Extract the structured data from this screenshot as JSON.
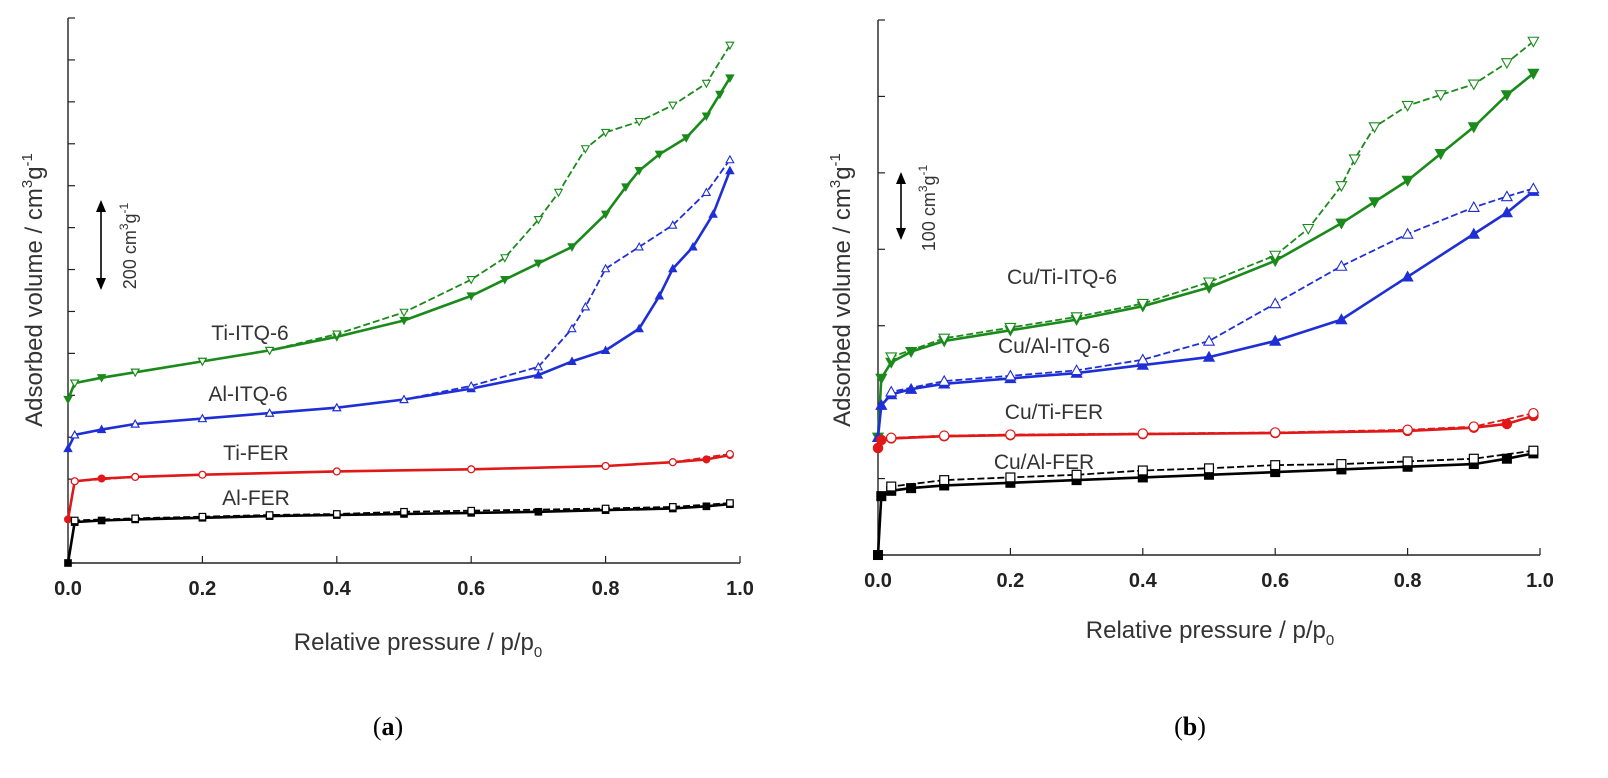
{
  "chart_data": [
    {
      "type": "line",
      "panel_label": "(a)",
      "panel_letter": "a",
      "xlabel": "Relative pressure / p/p",
      "xlabel_sub": "0",
      "ylabel": "Adsorbed volume / cm",
      "ylabel_sup1": "3",
      "ylabel_mid": "g",
      "ylabel_sup2": "-1",
      "xlim": [
        0,
        1
      ],
      "xticks": [
        "0.0",
        "0.2",
        "0.4",
        "0.6",
        "0.8",
        "1.0"
      ],
      "y_tick_labels_shown": false,
      "scale_bar": {
        "text": "200 cm",
        "sup1": "3",
        "mid": "g",
        "sup2": "-1",
        "value": 200
      },
      "series": [
        {
          "name": "Ti-ITQ-6",
          "color": "#1a8a1a",
          "marker": "triangle-down",
          "adsorption": [
            [
              0.0,
              0.3
            ],
            [
              0.01,
              0.33
            ],
            [
              0.05,
              0.34
            ],
            [
              0.1,
              0.35
            ],
            [
              0.2,
              0.37
            ],
            [
              0.3,
              0.39
            ],
            [
              0.4,
              0.415
            ],
            [
              0.5,
              0.445
            ],
            [
              0.6,
              0.49
            ],
            [
              0.65,
              0.52
            ],
            [
              0.7,
              0.55
            ],
            [
              0.75,
              0.58
            ],
            [
              0.8,
              0.64
            ],
            [
              0.83,
              0.69
            ],
            [
              0.85,
              0.72
            ],
            [
              0.88,
              0.75
            ],
            [
              0.92,
              0.78
            ],
            [
              0.95,
              0.82
            ],
            [
              0.97,
              0.86
            ],
            [
              0.985,
              0.89
            ]
          ],
          "desorption": [
            [
              0.985,
              0.95
            ],
            [
              0.95,
              0.88
            ],
            [
              0.9,
              0.84
            ],
            [
              0.85,
              0.81
            ],
            [
              0.8,
              0.79
            ],
            [
              0.77,
              0.76
            ],
            [
              0.73,
              0.68
            ],
            [
              0.7,
              0.63
            ],
            [
              0.65,
              0.56
            ],
            [
              0.6,
              0.52
            ],
            [
              0.5,
              0.46
            ],
            [
              0.4,
              0.42
            ],
            [
              0.3,
              0.39
            ],
            [
              0.2,
              0.37
            ],
            [
              0.1,
              0.35
            ],
            [
              0.01,
              0.33
            ]
          ]
        },
        {
          "name": "Al-ITQ-6",
          "color": "#1f2fd6",
          "marker": "triangle-up",
          "adsorption": [
            [
              0.0,
              0.21
            ],
            [
              0.01,
              0.235
            ],
            [
              0.05,
              0.245
            ],
            [
              0.1,
              0.255
            ],
            [
              0.2,
              0.265
            ],
            [
              0.3,
              0.275
            ],
            [
              0.4,
              0.285
            ],
            [
              0.5,
              0.3
            ],
            [
              0.6,
              0.32
            ],
            [
              0.7,
              0.345
            ],
            [
              0.75,
              0.37
            ],
            [
              0.8,
              0.39
            ],
            [
              0.85,
              0.43
            ],
            [
              0.88,
              0.49
            ],
            [
              0.9,
              0.54
            ],
            [
              0.93,
              0.58
            ],
            [
              0.96,
              0.64
            ],
            [
              0.985,
              0.72
            ]
          ],
          "desorption": [
            [
              0.985,
              0.74
            ],
            [
              0.95,
              0.68
            ],
            [
              0.9,
              0.62
            ],
            [
              0.85,
              0.58
            ],
            [
              0.8,
              0.54
            ],
            [
              0.77,
              0.47
            ],
            [
              0.75,
              0.43
            ],
            [
              0.7,
              0.36
            ],
            [
              0.6,
              0.325
            ],
            [
              0.5,
              0.3
            ],
            [
              0.4,
              0.285
            ],
            [
              0.3,
              0.275
            ],
            [
              0.2,
              0.265
            ],
            [
              0.1,
              0.255
            ],
            [
              0.01,
              0.235
            ]
          ]
        },
        {
          "name": "Ti-FER",
          "color": "#e01818",
          "marker": "circle",
          "adsorption": [
            [
              0.0,
              0.08
            ],
            [
              0.01,
              0.15
            ],
            [
              0.05,
              0.155
            ],
            [
              0.1,
              0.158
            ],
            [
              0.2,
              0.162
            ],
            [
              0.4,
              0.168
            ],
            [
              0.6,
              0.172
            ],
            [
              0.8,
              0.178
            ],
            [
              0.9,
              0.185
            ],
            [
              0.95,
              0.19
            ],
            [
              0.985,
              0.198
            ]
          ],
          "desorption": [
            [
              0.985,
              0.2
            ],
            [
              0.9,
              0.185
            ],
            [
              0.8,
              0.178
            ],
            [
              0.6,
              0.172
            ],
            [
              0.4,
              0.168
            ],
            [
              0.2,
              0.162
            ],
            [
              0.1,
              0.158
            ],
            [
              0.01,
              0.15
            ]
          ]
        },
        {
          "name": "Al-FER",
          "color": "#000000",
          "marker": "square",
          "adsorption": [
            [
              0.0,
              0.0
            ],
            [
              0.01,
              0.075
            ],
            [
              0.05,
              0.078
            ],
            [
              0.1,
              0.08
            ],
            [
              0.2,
              0.083
            ],
            [
              0.3,
              0.086
            ],
            [
              0.4,
              0.088
            ],
            [
              0.5,
              0.09
            ],
            [
              0.6,
              0.092
            ],
            [
              0.7,
              0.094
            ],
            [
              0.8,
              0.097
            ],
            [
              0.9,
              0.1
            ],
            [
              0.95,
              0.104
            ],
            [
              0.985,
              0.108
            ]
          ],
          "desorption": [
            [
              0.985,
              0.11
            ],
            [
              0.9,
              0.103
            ],
            [
              0.8,
              0.1
            ],
            [
              0.6,
              0.096
            ],
            [
              0.5,
              0.094
            ],
            [
              0.4,
              0.09
            ],
            [
              0.3,
              0.088
            ],
            [
              0.2,
              0.085
            ],
            [
              0.1,
              0.082
            ],
            [
              0.01,
              0.078
            ]
          ]
        }
      ]
    },
    {
      "type": "line",
      "panel_label": "(b)",
      "panel_letter": "b",
      "xlabel": "Relative pressure / p/p",
      "xlabel_sub": "0",
      "ylabel": "Adsorbed volume / cm",
      "ylabel_sup1": "3",
      "ylabel_mid": "g",
      "ylabel_sup2": "-1",
      "xlim": [
        0,
        1
      ],
      "xticks": [
        "0.0",
        "0.2",
        "0.4",
        "0.6",
        "0.8",
        "1.0"
      ],
      "y_tick_labels_shown": false,
      "scale_bar": {
        "text": "100 cm",
        "sup1": "3",
        "mid": "g",
        "sup2": "-1",
        "value": 100
      },
      "series": [
        {
          "name": "Cu/Ti-ITQ-6",
          "color": "#1a8a1a",
          "marker": "triangle-down",
          "adsorption": [
            [
              0.0,
              0.22
            ],
            [
              0.005,
              0.33
            ],
            [
              0.02,
              0.36
            ],
            [
              0.05,
              0.38
            ],
            [
              0.1,
              0.4
            ],
            [
              0.2,
              0.42
            ],
            [
              0.3,
              0.44
            ],
            [
              0.4,
              0.465
            ],
            [
              0.5,
              0.5
            ],
            [
              0.6,
              0.55
            ],
            [
              0.7,
              0.62
            ],
            [
              0.75,
              0.66
            ],
            [
              0.8,
              0.7
            ],
            [
              0.85,
              0.75
            ],
            [
              0.9,
              0.8
            ],
            [
              0.95,
              0.86
            ],
            [
              0.99,
              0.9
            ]
          ],
          "desorption": [
            [
              0.99,
              0.96
            ],
            [
              0.95,
              0.92
            ],
            [
              0.9,
              0.88
            ],
            [
              0.85,
              0.86
            ],
            [
              0.8,
              0.84
            ],
            [
              0.75,
              0.8
            ],
            [
              0.72,
              0.74
            ],
            [
              0.7,
              0.69
            ],
            [
              0.65,
              0.61
            ],
            [
              0.6,
              0.56
            ],
            [
              0.5,
              0.51
            ],
            [
              0.4,
              0.47
            ],
            [
              0.3,
              0.445
            ],
            [
              0.2,
              0.425
            ],
            [
              0.1,
              0.405
            ],
            [
              0.02,
              0.37
            ]
          ]
        },
        {
          "name": "Cu/Al-ITQ-6",
          "color": "#1f2fd6",
          "marker": "triangle-up",
          "adsorption": [
            [
              0.0,
              0.22
            ],
            [
              0.005,
              0.28
            ],
            [
              0.02,
              0.3
            ],
            [
              0.05,
              0.31
            ],
            [
              0.1,
              0.32
            ],
            [
              0.2,
              0.33
            ],
            [
              0.3,
              0.34
            ],
            [
              0.4,
              0.355
            ],
            [
              0.5,
              0.37
            ],
            [
              0.6,
              0.4
            ],
            [
              0.7,
              0.44
            ],
            [
              0.8,
              0.52
            ],
            [
              0.9,
              0.6
            ],
            [
              0.95,
              0.64
            ],
            [
              0.99,
              0.68
            ]
          ],
          "desorption": [
            [
              0.99,
              0.685
            ],
            [
              0.95,
              0.67
            ],
            [
              0.9,
              0.65
            ],
            [
              0.8,
              0.6
            ],
            [
              0.7,
              0.54
            ],
            [
              0.6,
              0.47
            ],
            [
              0.5,
              0.4
            ],
            [
              0.4,
              0.365
            ],
            [
              0.3,
              0.345
            ],
            [
              0.2,
              0.335
            ],
            [
              0.1,
              0.325
            ],
            [
              0.02,
              0.305
            ]
          ]
        },
        {
          "name": "Cu/Ti-FER",
          "color": "#e01818",
          "marker": "circle",
          "adsorption": [
            [
              0.0,
              0.2
            ],
            [
              0.005,
              0.215
            ],
            [
              0.02,
              0.218
            ],
            [
              0.1,
              0.222
            ],
            [
              0.2,
              0.224
            ],
            [
              0.4,
              0.226
            ],
            [
              0.6,
              0.228
            ],
            [
              0.8,
              0.232
            ],
            [
              0.9,
              0.238
            ],
            [
              0.95,
              0.245
            ],
            [
              0.99,
              0.26
            ]
          ],
          "desorption": [
            [
              0.99,
              0.265
            ],
            [
              0.9,
              0.24
            ],
            [
              0.8,
              0.234
            ],
            [
              0.6,
              0.229
            ],
            [
              0.4,
              0.227
            ],
            [
              0.2,
              0.225
            ],
            [
              0.1,
              0.223
            ],
            [
              0.02,
              0.219
            ]
          ]
        },
        {
          "name": "Cu/Al-FER",
          "color": "#000000",
          "marker": "square",
          "adsorption": [
            [
              0.0,
              0.0
            ],
            [
              0.005,
              0.11
            ],
            [
              0.02,
              0.12
            ],
            [
              0.05,
              0.125
            ],
            [
              0.1,
              0.13
            ],
            [
              0.2,
              0.135
            ],
            [
              0.3,
              0.14
            ],
            [
              0.4,
              0.145
            ],
            [
              0.5,
              0.15
            ],
            [
              0.6,
              0.155
            ],
            [
              0.7,
              0.16
            ],
            [
              0.8,
              0.165
            ],
            [
              0.9,
              0.17
            ],
            [
              0.95,
              0.18
            ],
            [
              0.99,
              0.19
            ]
          ],
          "desorption": [
            [
              0.99,
              0.195
            ],
            [
              0.9,
              0.18
            ],
            [
              0.8,
              0.175
            ],
            [
              0.7,
              0.17
            ],
            [
              0.6,
              0.168
            ],
            [
              0.5,
              0.162
            ],
            [
              0.4,
              0.158
            ],
            [
              0.3,
              0.15
            ],
            [
              0.2,
              0.145
            ],
            [
              0.1,
              0.14
            ],
            [
              0.02,
              0.128
            ]
          ]
        }
      ]
    }
  ]
}
